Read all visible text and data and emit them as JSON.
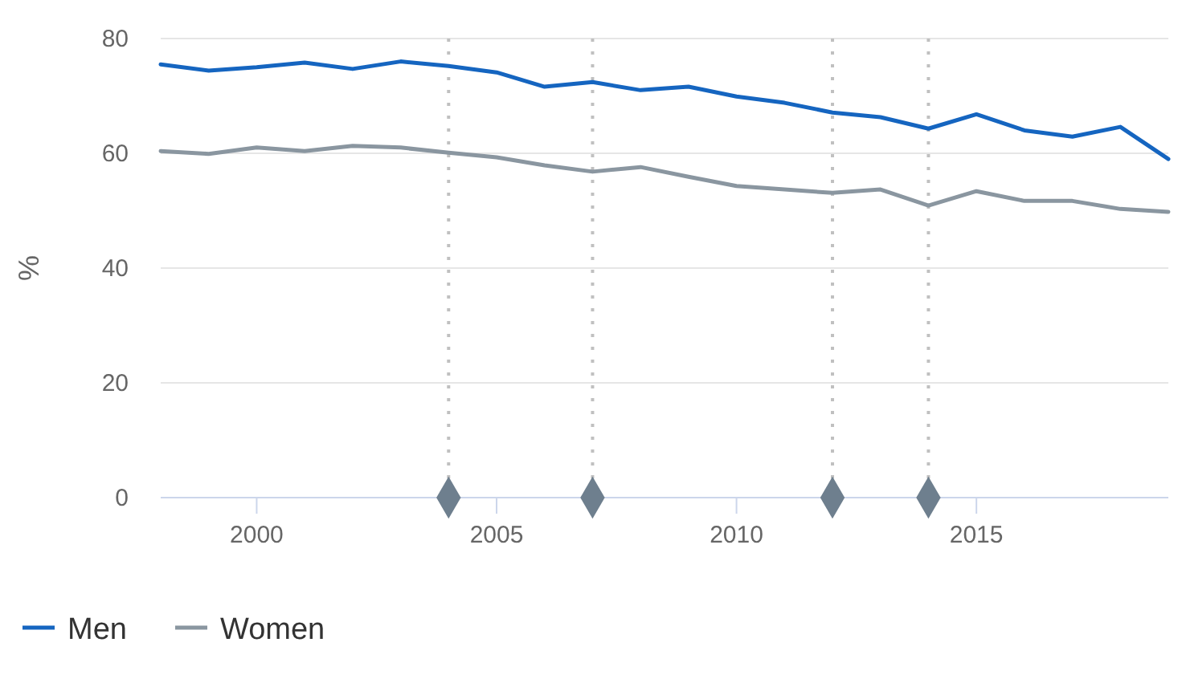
{
  "chart_data": {
    "type": "line",
    "ylabel": "%",
    "xlim": [
      1998,
      2019
    ],
    "xticks": [
      2000,
      2005,
      2010,
      2015
    ],
    "ylim": [
      0,
      80
    ],
    "yticks": [
      0,
      20,
      40,
      60,
      80
    ],
    "grid": "y",
    "legend": "bottom left",
    "marker": "none",
    "x": [
      1998,
      1999,
      2000,
      2001,
      2002,
      2003,
      2004,
      2005,
      2006,
      2007,
      2008,
      2009,
      2010,
      2011,
      2012,
      2013,
      2014,
      2015,
      2016,
      2017,
      2018,
      2019
    ],
    "series": [
      {
        "name": "Men",
        "color": "#1565c0",
        "values": [
          75.5,
          74.4,
          75,
          75.8,
          74.7,
          76,
          75.2,
          74.1,
          71.6,
          72.4,
          71,
          71.6,
          69.9,
          68.8,
          67.1,
          66.3,
          64.3,
          66.8,
          64,
          62.9,
          64.6,
          59
        ]
      },
      {
        "name": "Women",
        "color": "#8a96a0",
        "values": [
          60.4,
          59.9,
          61,
          60.4,
          61.3,
          61,
          60.1,
          59.3,
          57.9,
          56.8,
          57.6,
          55.9,
          54.3,
          53.7,
          53.1,
          53.7,
          50.9,
          53.4,
          51.7,
          51.7,
          50.3,
          49.8
        ]
      },
      {
        "type": "scatter",
        "marker": "diamond",
        "color": "#6e7f8e",
        "x": [
          2004,
          2007,
          2012,
          2014
        ],
        "values": [
          0,
          0,
          0,
          0
        ]
      }
    ],
    "ref_lines": [
      {
        "axis": "x",
        "value": 2004,
        "color": "#c0c0c0",
        "line_style": "dotted"
      },
      {
        "axis": "x",
        "value": 2007,
        "color": "#c0c0c0",
        "line_style": "dotted"
      },
      {
        "axis": "x",
        "value": 2012,
        "color": "#c0c0c0",
        "line_style": "dotted"
      },
      {
        "axis": "x",
        "value": 2014,
        "color": "#c0c0c0",
        "line_style": "dotted"
      }
    ]
  }
}
